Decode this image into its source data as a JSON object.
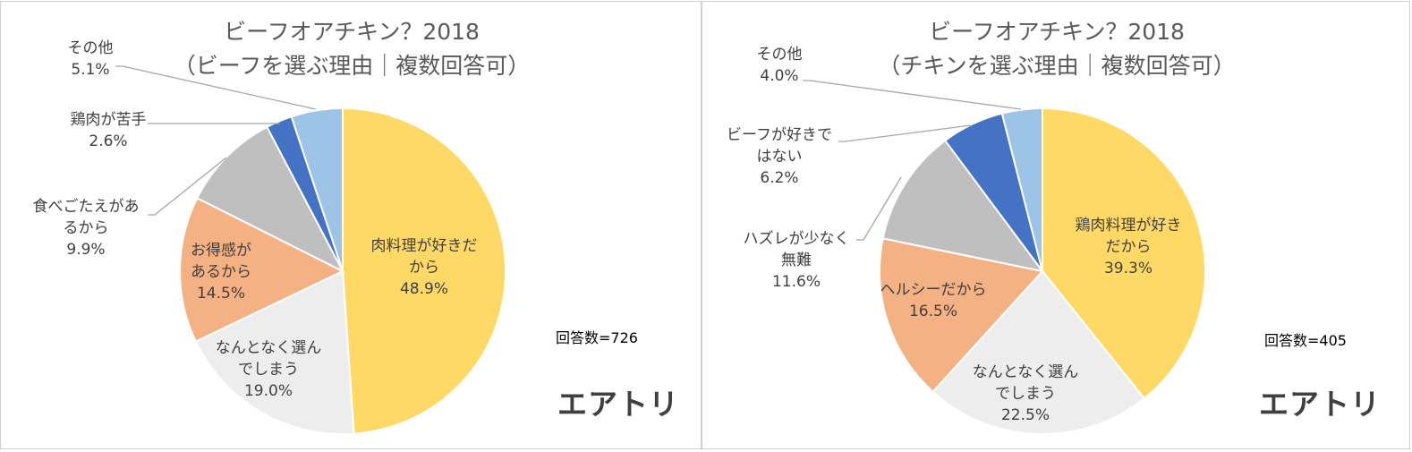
{
  "brand_color": "#3d9bd6",
  "colors": {
    "yellow": "#ffd966",
    "white_slice": "#ededed",
    "orange": "#f4b183",
    "gray": "#bfbfbf",
    "blue": "#4472c4",
    "light_blue": "#9dc3e6"
  },
  "chart_data": [
    {
      "type": "pie",
      "title_line1": "ビーフオアチキン？2018",
      "title_line2": "（ビーフを選ぶ理由｜複数回答可）",
      "respondents": "回答数=726",
      "brand": "エアトリ",
      "slices": [
        {
          "label": [
            "肉料理が好きだ",
            "から"
          ],
          "value": 48.9,
          "value_text": "48.9%",
          "color": "#ffd966"
        },
        {
          "label": [
            "なんとなく選ん",
            "でしまう"
          ],
          "value": 19.0,
          "value_text": "19.0%",
          "color": "#ededed"
        },
        {
          "label": [
            "お得感が",
            "あるから"
          ],
          "value": 14.5,
          "value_text": "14.5%",
          "color": "#f4b183"
        },
        {
          "label": [
            "食べごたえがあ",
            "るから"
          ],
          "value": 9.9,
          "value_text": "9.9%",
          "color": "#bfbfbf"
        },
        {
          "label": [
            "鶏肉が苦手"
          ],
          "value": 2.6,
          "value_text": "2.6%",
          "color": "#4472c4"
        },
        {
          "label": [
            "その他"
          ],
          "value": 5.1,
          "value_text": "5.1%",
          "color": "#9dc3e6"
        }
      ]
    },
    {
      "type": "pie",
      "title_line1": "ビーフオアチキン？2018",
      "title_line2": "（チキンを選ぶ理由｜複数回答可）",
      "respondents": "回答数=405",
      "brand": "エアトリ",
      "slices": [
        {
          "label": [
            "鶏肉料理が好き",
            "だから"
          ],
          "value": 39.3,
          "value_text": "39.3%",
          "color": "#ffd966"
        },
        {
          "label": [
            "なんとなく選ん",
            "でしまう"
          ],
          "value": 22.5,
          "value_text": "22.5%",
          "color": "#ededed"
        },
        {
          "label": [
            "ヘルシーだから"
          ],
          "value": 16.5,
          "value_text": "16.5%",
          "color": "#f4b183"
        },
        {
          "label": [
            "ハズレが少なく",
            "無難"
          ],
          "value": 11.6,
          "value_text": "11.6%",
          "color": "#bfbfbf"
        },
        {
          "label": [
            "ビーフが好きで",
            "はない"
          ],
          "value": 6.2,
          "value_text": "6.2%",
          "color": "#4472c4"
        },
        {
          "label": [
            "その他"
          ],
          "value": 4.0,
          "value_text": "4.0%",
          "color": "#9dc3e6"
        }
      ]
    }
  ]
}
